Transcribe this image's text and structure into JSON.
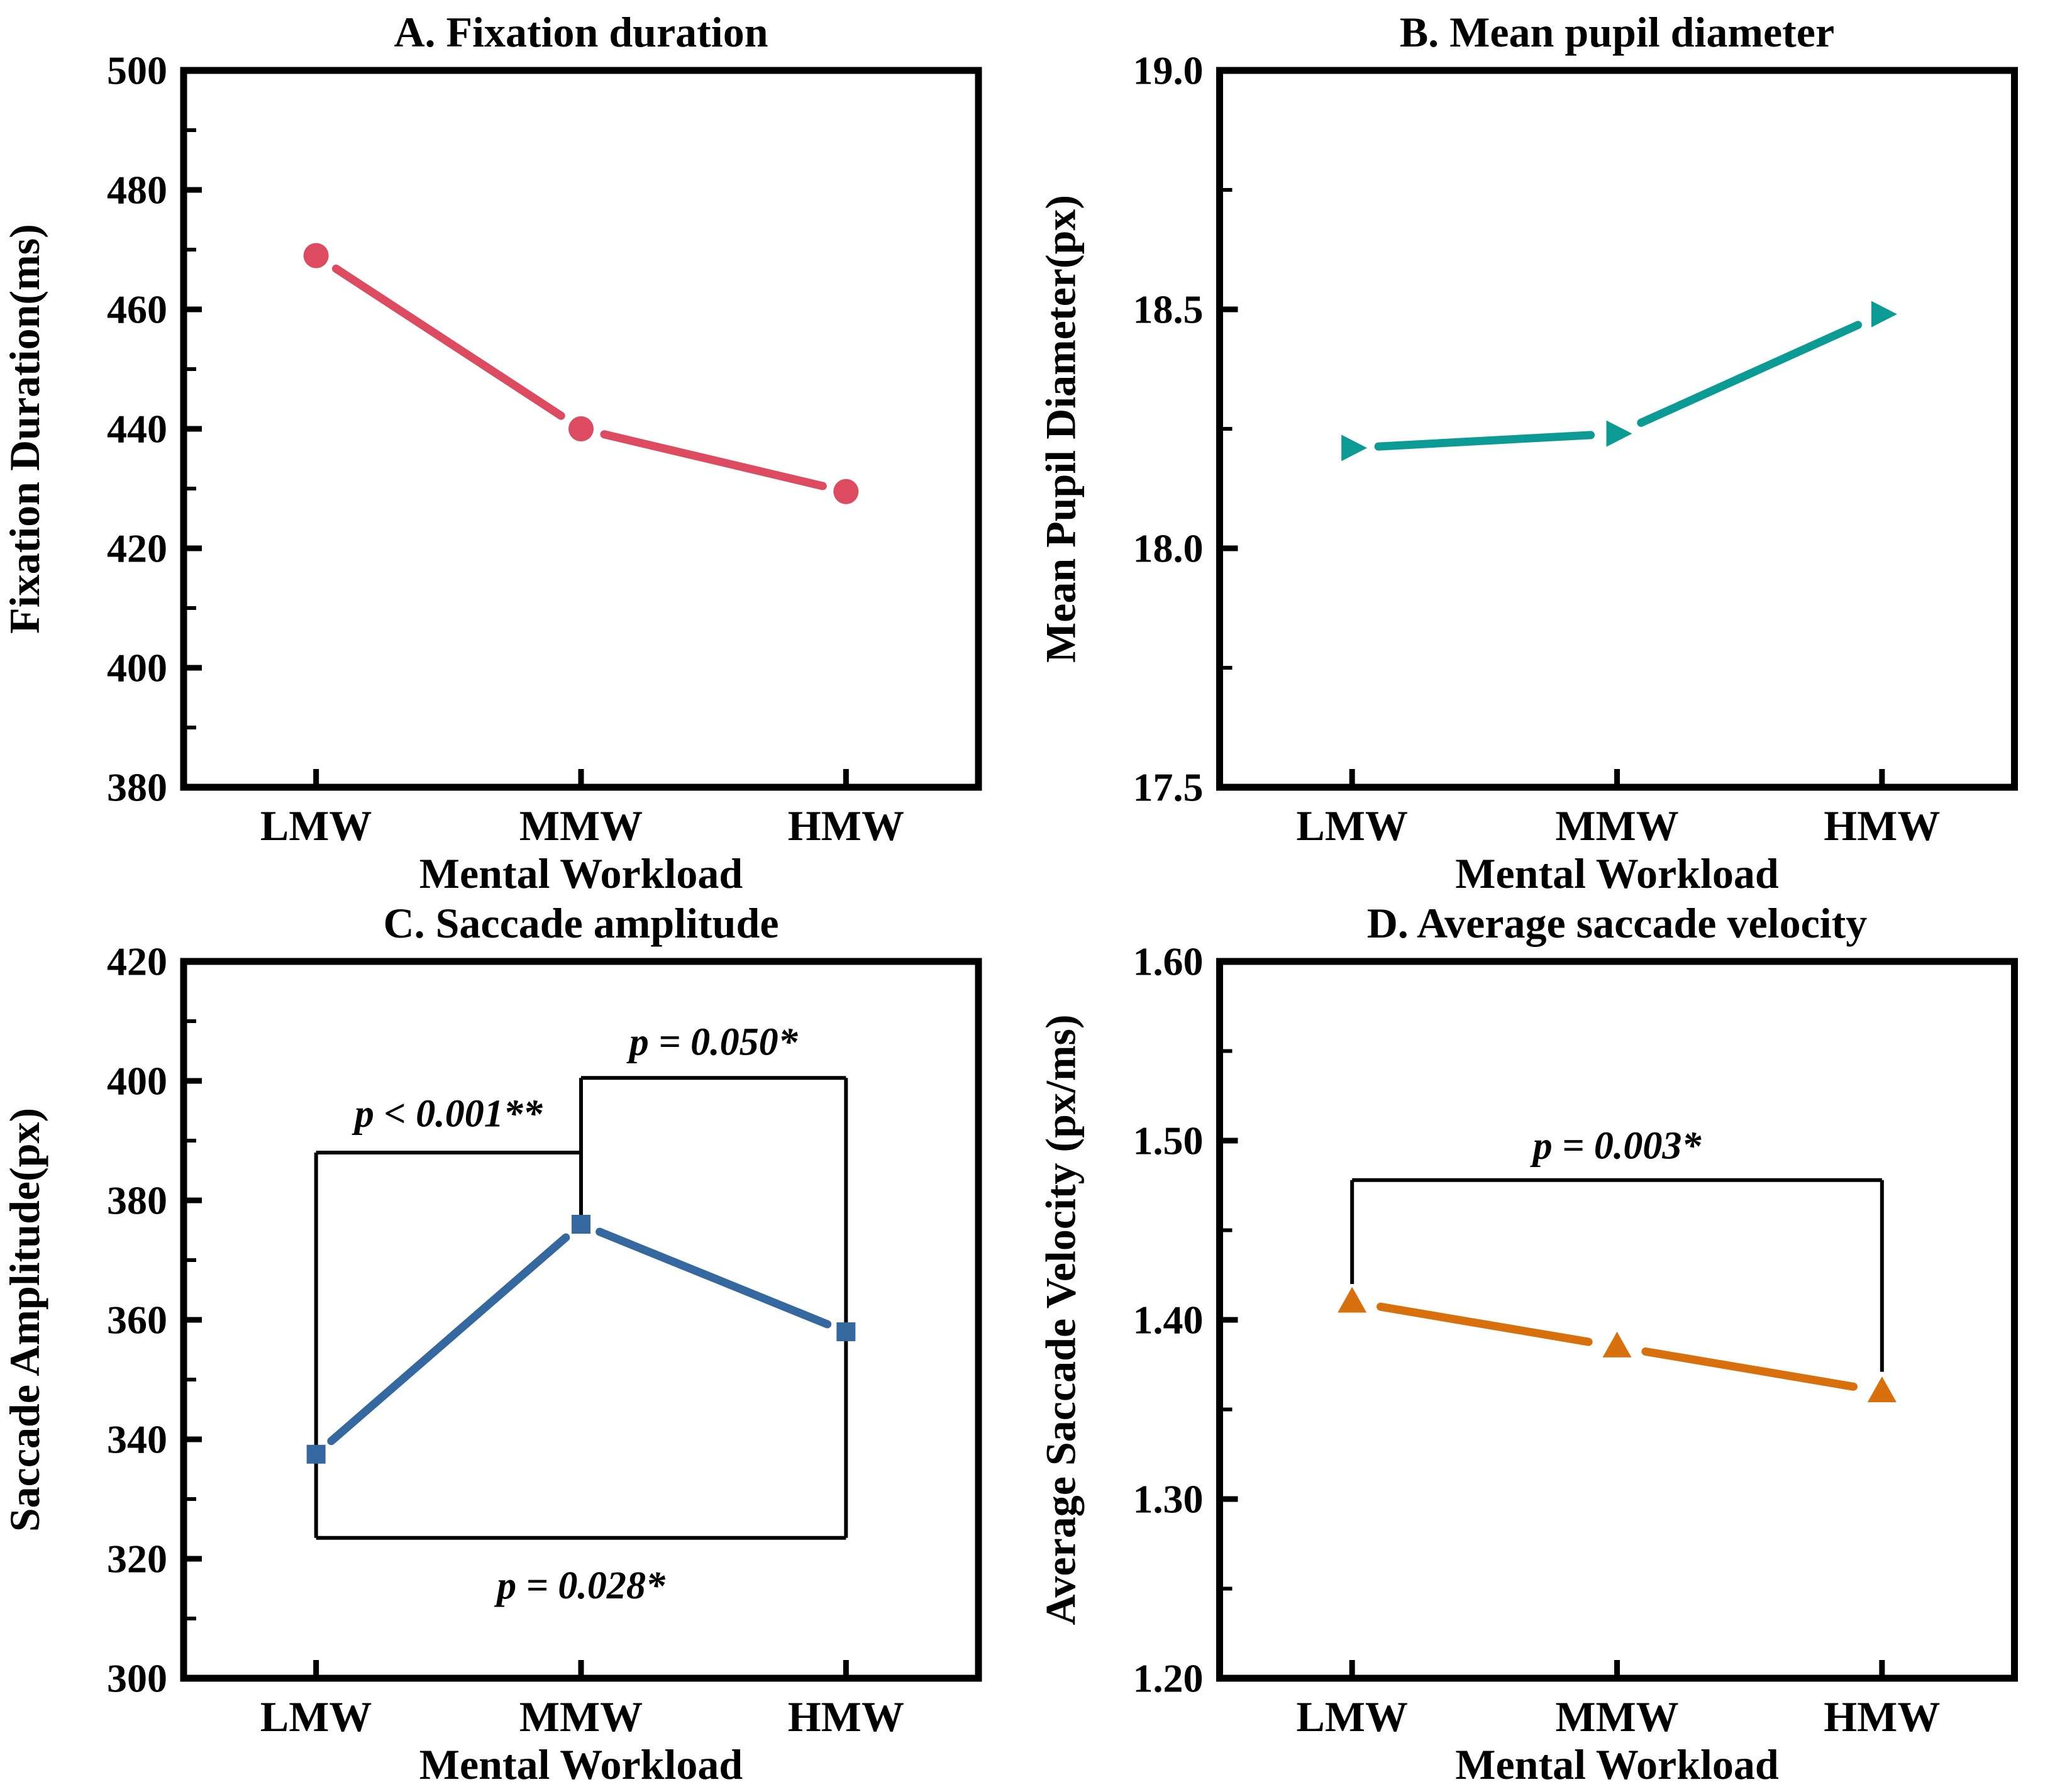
{
  "figure": {
    "background": "#ffffff",
    "x_axis_label": "Mental Workload",
    "categories": [
      "LMW",
      "MMW",
      "HMW"
    ]
  },
  "chart_data": [
    {
      "type": "line",
      "panel": "A",
      "title": "A. Fixation duration",
      "xlabel": "Mental Workload",
      "ylabel": "Fixation Duration(ms)",
      "categories": [
        "LMW",
        "MMW",
        "HMW"
      ],
      "values": [
        469,
        440,
        429.5
      ],
      "ylim": [
        380,
        500
      ],
      "y_ticks": [
        {
          "value": 380,
          "label": "380"
        },
        {
          "value": 400,
          "label": "400"
        },
        {
          "value": 420,
          "label": "420"
        },
        {
          "value": 440,
          "label": "440"
        },
        {
          "value": 460,
          "label": "460"
        },
        {
          "value": 480,
          "label": "480"
        },
        {
          "value": 500,
          "label": "500"
        }
      ],
      "y_minor_step": 10,
      "color": "#DC4B5F",
      "marker": "circle",
      "brackets": []
    },
    {
      "type": "line",
      "panel": "B",
      "title": "B. Mean pupil diameter",
      "xlabel": "Mental Workload",
      "ylabel": "Mean Pupil Diameter(px)",
      "categories": [
        "LMW",
        "MMW",
        "HMW"
      ],
      "values": [
        18.21,
        18.24,
        18.49
      ],
      "ylim": [
        17.5,
        19.0
      ],
      "y_ticks": [
        {
          "value": 17.5,
          "label": "17.5"
        },
        {
          "value": 18.0,
          "label": "18.0"
        },
        {
          "value": 18.5,
          "label": "18.5"
        },
        {
          "value": 19.0,
          "label": "19.0"
        }
      ],
      "y_minor_step": 0.25,
      "color": "#0C9B94",
      "marker": "triangle-right",
      "brackets": []
    },
    {
      "type": "line",
      "panel": "C",
      "title": "C. Saccade amplitude",
      "xlabel": "Mental Workload",
      "ylabel": "Saccade Amplitude(px)",
      "categories": [
        "LMW",
        "MMW",
        "HMW"
      ],
      "values": [
        337.5,
        376,
        358
      ],
      "ylim": [
        300,
        420
      ],
      "y_ticks": [
        {
          "value": 300,
          "label": "300"
        },
        {
          "value": 320,
          "label": "320"
        },
        {
          "value": 340,
          "label": "340"
        },
        {
          "value": 360,
          "label": "360"
        },
        {
          "value": 380,
          "label": "380"
        },
        {
          "value": 400,
          "label": "400"
        },
        {
          "value": 420,
          "label": "420"
        }
      ],
      "y_minor_step": 10,
      "color": "#35689E",
      "marker": "square",
      "brackets": [
        {
          "label": "p < 0.001**",
          "label_x": 1.5,
          "label_y": 394.5,
          "segments": [
            [
              1,
              323.5,
              1,
              388
            ],
            [
              1,
              388,
              2,
              388
            ]
          ]
        },
        {
          "label": "p = 0.050*",
          "label_x": 2.5,
          "label_y": 406.5,
          "segments": [
            [
              2,
              377,
              2,
              400.5
            ],
            [
              2,
              400.5,
              3,
              400.5
            ]
          ]
        },
        {
          "label": "p = 0.028*",
          "label_x": 2,
          "label_y": 315.5,
          "segments": [
            [
              3,
              323.5,
              3,
              400.5
            ],
            [
              1,
              323.5,
              3,
              323.5
            ]
          ]
        }
      ]
    },
    {
      "type": "line",
      "panel": "D",
      "title": "D. Average saccade velocity",
      "xlabel": "Mental Workload",
      "ylabel": "Average Saccade Velocity (px/ms)",
      "categories": [
        "LMW",
        "MMW",
        "HMW"
      ],
      "values": [
        1.41,
        1.385,
        1.36
      ],
      "ylim": [
        1.2,
        1.6
      ],
      "y_ticks": [
        {
          "value": 1.2,
          "label": "1.20"
        },
        {
          "value": 1.3,
          "label": "1.30"
        },
        {
          "value": 1.4,
          "label": "1.40"
        },
        {
          "value": 1.5,
          "label": "1.50"
        },
        {
          "value": 1.6,
          "label": "1.60"
        }
      ],
      "y_minor_step": 0.05,
      "color": "#D8700E",
      "marker": "triangle-up",
      "brackets": [
        {
          "label": "p = 0.003*",
          "label_x": 2,
          "label_y": 1.497,
          "segments": [
            [
              1,
              1.42,
              1,
              1.478
            ],
            [
              1,
              1.478,
              3,
              1.478
            ],
            [
              3,
              1.478,
              3,
              1.371
            ]
          ]
        }
      ]
    }
  ]
}
